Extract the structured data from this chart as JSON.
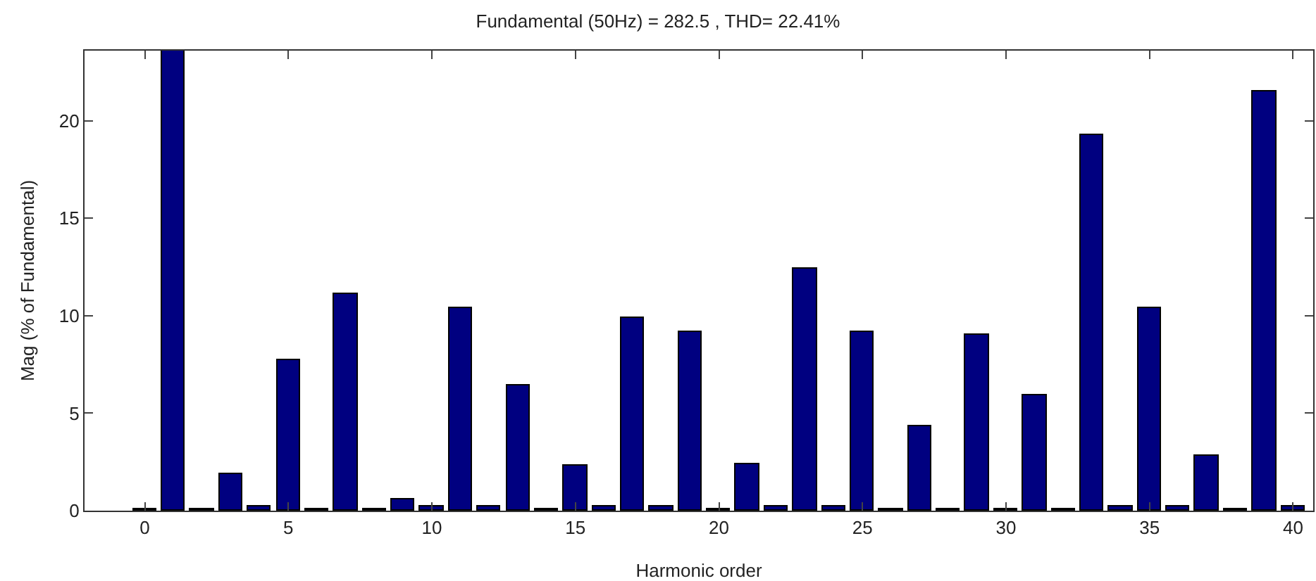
{
  "chart_data": {
    "type": "bar",
    "title": "Fundamental (50Hz) = 282.5 , THD= 22.41%",
    "xlabel": "Harmonic order",
    "ylabel": "Mag (% of Fundamental)",
    "x": [
      0,
      1,
      2,
      3,
      4,
      5,
      6,
      7,
      8,
      9,
      10,
      11,
      12,
      13,
      14,
      15,
      16,
      17,
      18,
      19,
      20,
      21,
      22,
      23,
      24,
      25,
      26,
      27,
      28,
      29,
      30,
      31,
      32,
      33,
      34,
      35,
      36,
      37,
      38,
      39,
      40
    ],
    "values": [
      0.1,
      23.6,
      0.1,
      1.9,
      0.25,
      7.7,
      0.1,
      11.1,
      0.1,
      0.6,
      0.25,
      10.4,
      0.25,
      6.4,
      0.1,
      2.3,
      0.25,
      9.9,
      0.25,
      9.2,
      0.1,
      2.4,
      0.25,
      12.4,
      0.25,
      9.2,
      0.1,
      4.3,
      0.1,
      9.0,
      0.1,
      5.9,
      0.1,
      19.3,
      0.25,
      10.4,
      0.25,
      2.8,
      0.1,
      21.5,
      0.25
    ],
    "color": "#000080",
    "xlim": [
      -2.1,
      40.7
    ],
    "ylim": [
      0,
      23.6
    ],
    "xticks": [
      0,
      5,
      10,
      15,
      20,
      25,
      30,
      35,
      40
    ],
    "yticks": [
      0,
      5,
      10,
      15,
      20
    ],
    "grid": false
  }
}
